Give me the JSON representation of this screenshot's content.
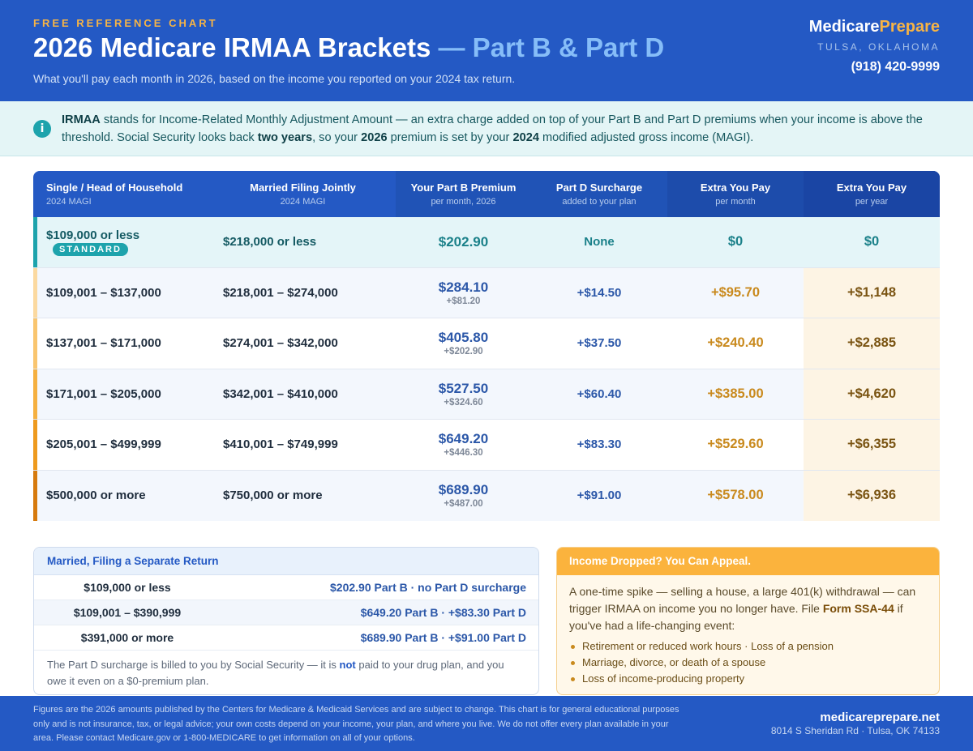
{
  "header": {
    "eyebrow": "FREE REFERENCE CHART",
    "title_main": "2026 Medicare IRMAA Brackets",
    "title_highlight": "— Part B & Part D",
    "subtitle": "What you'll pay each month in 2026, based on the income you reported on your 2024 tax return."
  },
  "brand": {
    "name_part1": "Medicare",
    "name_part2": "Prepare",
    "location": "TULSA, OKLAHOMA",
    "phone": "(918) 420-9999"
  },
  "info": {
    "icon": "info-icon",
    "icon_glyph": "i",
    "lead_bold": "IRMAA",
    "text1": " stands for Income-Related Monthly Adjustment Amount — an extra charge added on top of your Part B and Part D premiums when your income is above the threshold. Social Security looks back ",
    "bold2": "two years",
    "text2": ", so your ",
    "bold3": "2026",
    "text3": " premium is set by your ",
    "bold4": "2024",
    "text4": " modified adjusted gross income (MAGI)."
  },
  "table": {
    "columns": [
      {
        "label": "Single / Head of Household",
        "sub": "2024 MAGI"
      },
      {
        "label": "Married Filing Jointly",
        "sub": "2024 MAGI"
      },
      {
        "label": "Your Part B Premium",
        "sub": "per month, 2026"
      },
      {
        "label": "Part D Surcharge",
        "sub": "added to your plan"
      },
      {
        "label": "Extra You Pay",
        "sub": "per month"
      },
      {
        "label": "Extra You Pay",
        "sub": "per year"
      }
    ],
    "standard_badge": "STANDARD",
    "rows": [
      {
        "single": "$109,000 or less",
        "joint": "$218,000 or less",
        "partb": "$202.90",
        "partb_delta": "",
        "partd": "None",
        "extra_month": "$0",
        "extra_year": "$0",
        "bar_color": "#1da3ac",
        "bg": "#e4f5f8"
      },
      {
        "single": "$109,001 – $137,000",
        "joint": "$218,001 – $274,000",
        "partb": "$284.10",
        "partb_delta": "+$81.20",
        "partd": "+$14.50",
        "extra_month": "+$95.70",
        "extra_year": "+$1,148",
        "bar_color": "#fbd9a0",
        "bg": "#f3f7fd"
      },
      {
        "single": "$137,001 – $171,000",
        "joint": "$274,001 – $342,000",
        "partb": "$405.80",
        "partb_delta": "+$202.90",
        "partd": "+$37.50",
        "extra_month": "+$240.40",
        "extra_year": "+$2,885",
        "bar_color": "#f9c56f",
        "bg": "#ffffff"
      },
      {
        "single": "$171,001 – $205,000",
        "joint": "$342,001 – $410,000",
        "partb": "$527.50",
        "partb_delta": "+$324.60",
        "partd": "+$60.40",
        "extra_month": "+$385.00",
        "extra_year": "+$4,620",
        "bar_color": "#f5b040",
        "bg": "#f3f7fd"
      },
      {
        "single": "$205,001 – $499,999",
        "joint": "$410,001 – $749,999",
        "partb": "$649.20",
        "partb_delta": "+$446.30",
        "partd": "+$83.30",
        "extra_month": "+$529.60",
        "extra_year": "+$6,355",
        "bar_color": "#ee9a1e",
        "bg": "#ffffff"
      },
      {
        "single": "$500,000 or more",
        "joint": "$750,000 or more",
        "partb": "$689.90",
        "partb_delta": "+$487.00",
        "partd": "+$91.00",
        "extra_month": "+$578.00",
        "extra_year": "+$6,936",
        "bar_color": "#d67a0e",
        "bg": "#f3f7fd"
      }
    ]
  },
  "mfs": {
    "title": "Married, Filing a Separate Return",
    "rows": [
      {
        "income": "$109,000 or less",
        "value": "$202.90 Part B  ·  no Part D surcharge"
      },
      {
        "income": "$109,001 – $390,999",
        "value": "$649.20 Part B  ·  +$83.30 Part D"
      },
      {
        "income": "$391,000 or more",
        "value": "$689.90 Part B  ·  +$91.00 Part D"
      }
    ],
    "note1": "The Part D surcharge is billed to you by Social Security — it is ",
    "note_bold": "not",
    "note2": " paid to your drug plan, and you owe it even on a $0-premium plan."
  },
  "appeal": {
    "title": "Income Dropped? You Can Appeal.",
    "text1": "A one-time spike — selling a house, a large 401(k) withdrawal — can trigger IRMAA on income you no longer have. File ",
    "form": "Form SSA-44",
    "text2": " if you've had a life-changing event:",
    "items": [
      "Retirement or reduced work hours  ·  Loss of a pension",
      "Marriage, divorce, or death of a spouse",
      "Loss of income-producing property"
    ]
  },
  "footer": {
    "disclaimer": "Figures are the 2026 amounts published by the Centers for Medicare & Medicaid Services and are subject to change. This chart is for general educational purposes only and is not insurance, tax, or legal advice; your own costs depend on your income, your plan, and where you live. We do not offer every plan available in your area. Please contact Medicare.gov or 1-800-MEDICARE to get information on all of your options.",
    "url": "medicareprepare.net",
    "address": "8014 S Sheridan Rd · Tulsa, OK 74133"
  }
}
